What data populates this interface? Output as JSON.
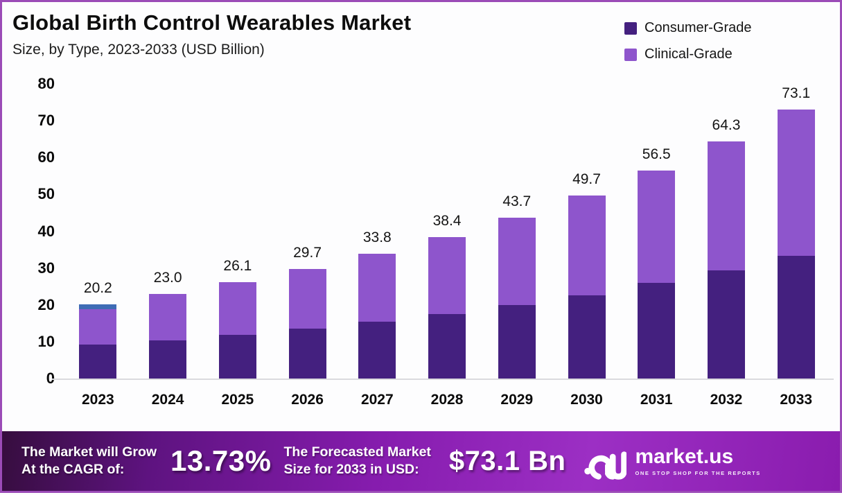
{
  "frame": {
    "border_color": "#9b4bb7",
    "background": "#fdfdfe"
  },
  "header": {
    "title": "Global Birth Control Wearables Market",
    "subtitle": "Size, by Type, 2023-2033 (USD Billion)"
  },
  "legend": [
    {
      "label": "Consumer-Grade",
      "color": "#44207f"
    },
    {
      "label": "Clinical-Grade",
      "color": "#8e55cc"
    }
  ],
  "chart_data": {
    "type": "bar",
    "stacked": true,
    "title": "Global Birth Control Wearables Market Size, by Type, 2023-2033 (USD Billion)",
    "categories": [
      "2023",
      "2024",
      "2025",
      "2026",
      "2027",
      "2028",
      "2029",
      "2030",
      "2031",
      "2032",
      "2033"
    ],
    "series": [
      {
        "name": "Consumer-Grade",
        "color": "#44207f",
        "values": [
          9.2,
          10.4,
          11.8,
          13.5,
          15.4,
          17.5,
          19.9,
          22.6,
          25.9,
          29.3,
          33.4
        ]
      },
      {
        "name": "Clinical-Grade",
        "color": "#8e55cc",
        "values": [
          11.0,
          12.6,
          14.3,
          16.2,
          18.4,
          20.9,
          23.8,
          27.1,
          30.6,
          35.0,
          39.7
        ]
      }
    ],
    "totals": [
      20.2,
      23.0,
      26.1,
      29.7,
      33.8,
      38.4,
      43.7,
      49.7,
      56.5,
      64.3,
      73.1
    ],
    "total_labels": [
      "20.2",
      "23.0",
      "26.1",
      "29.7",
      "33.8",
      "38.4",
      "43.7",
      "49.7",
      "56.5",
      "64.3",
      "73.1"
    ],
    "y_ticks": [
      0,
      10,
      20,
      30,
      40,
      50,
      60,
      70,
      80
    ],
    "ylim": [
      0,
      80
    ],
    "grid": false,
    "legend_position": "top-right",
    "cap_2023": {
      "color": "#3e6cb5",
      "height_units": 1.3
    }
  },
  "footer": {
    "cagr_label_line1": "The Market will Grow",
    "cagr_label_line2": "At the CAGR of:",
    "cagr_value": "13.73%",
    "forecast_label_line1": "The Forecasted Market",
    "forecast_label_line2": "Size for 2033 in USD:",
    "forecast_value": "$73.1 Bn",
    "brand": {
      "name": "market.us",
      "tagline": "ONE STOP SHOP FOR THE REPORTS"
    }
  }
}
